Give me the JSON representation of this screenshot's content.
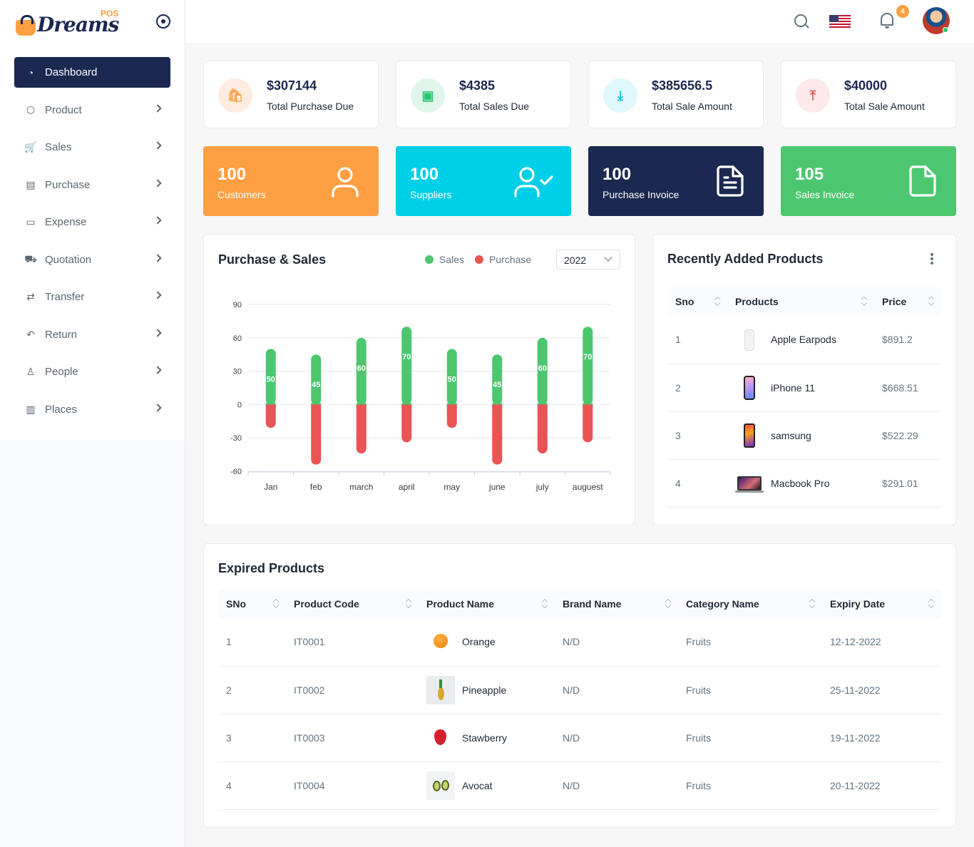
{
  "brand": {
    "name": "Dreams",
    "tag": "POS"
  },
  "sidebar": {
    "items": [
      {
        "label": "Dashboard",
        "icon": "dashboard-icon",
        "active": true
      },
      {
        "label": "Product",
        "icon": "box-icon"
      },
      {
        "label": "Sales",
        "icon": "cart-icon"
      },
      {
        "label": "Purchase",
        "icon": "purchase-icon"
      },
      {
        "label": "Expense",
        "icon": "wallet-icon"
      },
      {
        "label": "Quotation",
        "icon": "quotation-cart-icon"
      },
      {
        "label": "Transfer",
        "icon": "transfer-icon"
      },
      {
        "label": "Return",
        "icon": "return-icon"
      },
      {
        "label": "People",
        "icon": "user-icon"
      },
      {
        "label": "Places",
        "icon": "map-icon"
      }
    ]
  },
  "header": {
    "notification_count": "4"
  },
  "stats": [
    {
      "value": "$307144",
      "label": "Total Purchase Due",
      "color": "#ff9f43",
      "bg": "#ffece0"
    },
    {
      "value": "$4385",
      "label": "Total Sales Due",
      "color": "#28c76f",
      "bg": "#e1f6ea"
    },
    {
      "value": "$385656.5",
      "label": "Total Sale Amount",
      "color": "#00cfe8",
      "bg": "#e0f8fc"
    },
    {
      "value": "$40000",
      "label": "Total Sale Amount",
      "color": "#ea5455",
      "bg": "#fde9e9"
    }
  ],
  "counts": [
    {
      "value": "100",
      "label": "Customers",
      "bg": "#ff9f43",
      "icon": "user-icon"
    },
    {
      "value": "100",
      "label": "Suppliers",
      "bg": "#00cfe8",
      "icon": "user-check-icon"
    },
    {
      "value": "100",
      "label": "Purchase Invoice",
      "bg": "#1b2850",
      "icon": "file-text-icon"
    },
    {
      "value": "105",
      "label": "Sales Invoice",
      "bg": "#4cc76f",
      "icon": "file-icon"
    }
  ],
  "chart_panel": {
    "title": "Purchase & Sales",
    "legend": {
      "sales": "Sales",
      "purchase": "Purchase"
    },
    "year": "2022"
  },
  "chart_data": {
    "type": "bar",
    "categories": [
      "Jan",
      "feb",
      "march",
      "april",
      "may",
      "june",
      "july",
      "auguest"
    ],
    "series": [
      {
        "name": "Sales",
        "values": [
          50,
          45,
          60,
          70,
          50,
          45,
          60,
          70
        ],
        "color": "#4cc76f"
      },
      {
        "name": "Purchase",
        "values": [
          -21,
          -54,
          -44,
          -34,
          -21,
          -54,
          -44,
          -34
        ],
        "color": "#ea5455"
      }
    ],
    "yticks": [
      90,
      60,
      30,
      0,
      -30,
      -60
    ],
    "ylim": [
      -60,
      90
    ],
    "stacked": true,
    "grid": true
  },
  "recent_products": {
    "title": "Recently Added Products",
    "columns": [
      "Sno",
      "Products",
      "Price"
    ],
    "rows": [
      {
        "sno": "1",
        "name": "Apple Earpods",
        "price": "$891.2",
        "img": "earpods"
      },
      {
        "sno": "2",
        "name": "iPhone 11",
        "price": "$668.51",
        "img": "iphone"
      },
      {
        "sno": "3",
        "name": "samsung",
        "price": "$522.29",
        "img": "samsung"
      },
      {
        "sno": "4",
        "name": "Macbook Pro",
        "price": "$291.01",
        "img": "macbook"
      }
    ]
  },
  "expired_products": {
    "title": "Expired Products",
    "columns": [
      "SNo",
      "Product Code",
      "Product Name",
      "Brand Name",
      "Category Name",
      "Expiry Date"
    ],
    "rows": [
      {
        "sno": "1",
        "code": "IT0001",
        "name": "Orange",
        "brand": "N/D",
        "category": "Fruits",
        "expiry": "12-12-2022",
        "img": "orange"
      },
      {
        "sno": "2",
        "code": "IT0002",
        "name": "Pineapple",
        "brand": "N/D",
        "category": "Fruits",
        "expiry": "25-11-2022",
        "img": "pineapple"
      },
      {
        "sno": "3",
        "code": "IT0003",
        "name": "Stawberry",
        "brand": "N/D",
        "category": "Fruits",
        "expiry": "19-11-2022",
        "img": "strawberry"
      },
      {
        "sno": "4",
        "code": "IT0004",
        "name": "Avocat",
        "brand": "N/D",
        "category": "Fruits",
        "expiry": "20-11-2022",
        "img": "avocado"
      }
    ]
  }
}
